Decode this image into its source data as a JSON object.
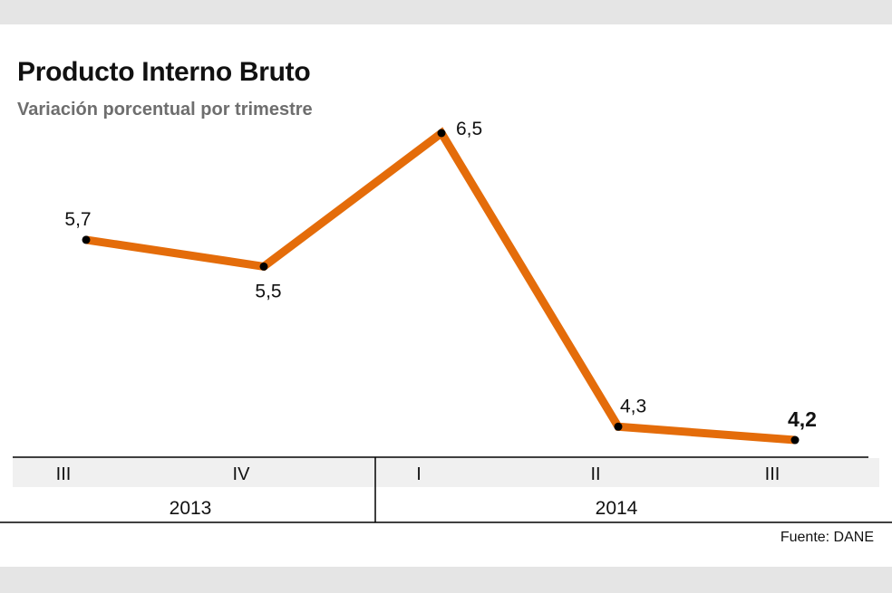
{
  "title": "Producto Interno Bruto",
  "subtitle": "Variación porcentual por trimestre",
  "source": "Fuente: DANE",
  "colors": {
    "line": "#e46c0a",
    "marker": "#000000",
    "axis": "#000000",
    "tick_band": "#f0f0f0",
    "frame_band": "#e5e5e5"
  },
  "chart_data": {
    "type": "line",
    "categories": [
      "III",
      "IV",
      "I",
      "II",
      "III"
    ],
    "groups": [
      {
        "label": "2013",
        "categories": [
          "III",
          "IV"
        ]
      },
      {
        "label": "2014",
        "categories": [
          "I",
          "II",
          "III"
        ]
      }
    ],
    "values": [
      5.7,
      5.5,
      6.5,
      4.3,
      4.2
    ],
    "value_labels": [
      "5,7",
      "5,5",
      "6,5",
      "4,3",
      "4,2"
    ],
    "highlight_last": true,
    "grid": false
  }
}
